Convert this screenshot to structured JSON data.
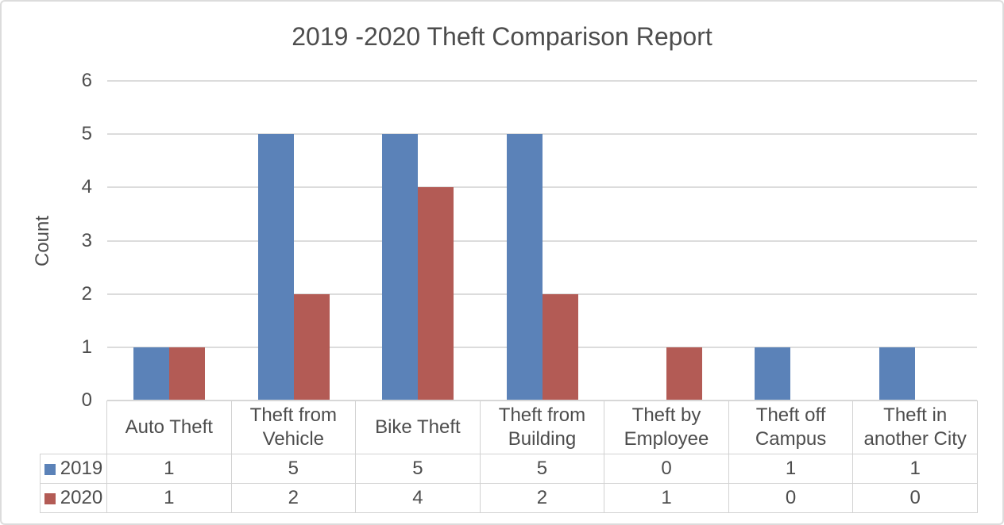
{
  "chart_data": {
    "type": "bar",
    "title": "2019 -2020 Theft Comparison Report",
    "xlabel": "",
    "ylabel": "Count",
    "categories": [
      "Auto Theft",
      "Theft from Vehicle",
      "Bike Theft",
      "Theft from Building",
      "Theft by Employee",
      "Theft off Campus",
      "Theft in another City"
    ],
    "series": [
      {
        "name": "2019",
        "color": "#5B82B8",
        "values": [
          1,
          5,
          5,
          5,
          0,
          1,
          1
        ]
      },
      {
        "name": "2020",
        "color": "#B35B55",
        "values": [
          1,
          2,
          4,
          2,
          1,
          0,
          0
        ]
      }
    ],
    "ylim": [
      0,
      6
    ],
    "yticks": [
      0,
      1,
      2,
      3,
      4,
      5,
      6
    ],
    "grid": true,
    "legend_position": "data-table-left",
    "data_table": true
  },
  "colors": {
    "background": "#FFFFFF",
    "figure_border": "#DCDCDC",
    "grid": "#DCDCDC",
    "table_border": "#D2D2D2",
    "text": "#4D4D4D"
  }
}
